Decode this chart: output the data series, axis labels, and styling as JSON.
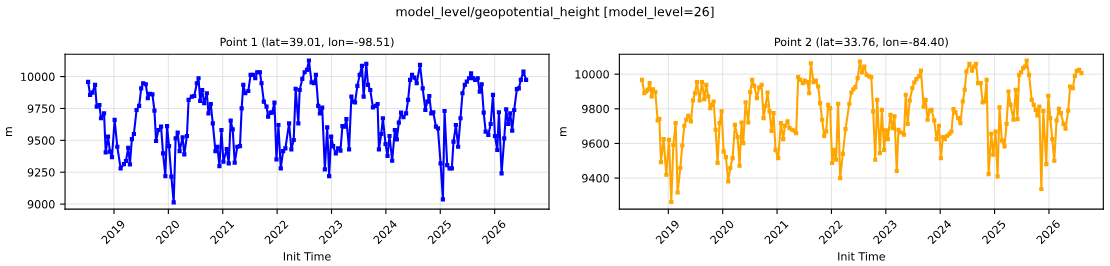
{
  "chart_data": [
    {
      "type": "line",
      "title": "Point 1 (lat=39.01, lon=-98.51)",
      "annotations": [
        "model_level/geopotential_height [model_level=26]"
      ],
      "xlabel": "Init Time",
      "ylabel": "m",
      "marker": "square",
      "grid": true,
      "xlim": [
        2018.1,
        2027.0
      ],
      "xticks": [
        2019,
        2020,
        2021,
        2022,
        2023,
        2024,
        2025,
        2026
      ],
      "ylim": [
        8961,
        10175
      ],
      "yticks": [
        9000,
        9250,
        9500,
        9750,
        10000
      ],
      "series": [
        {
          "color": "#0000ff",
          "x": [
            2018.524,
            2018.561,
            2018.604,
            2018.652,
            2018.683,
            2018.732,
            2018.762,
            2018.817,
            2018.848,
            2018.89,
            2018.927,
            2018.963,
            2019.012,
            2019.061,
            2019.122,
            2019.183,
            2019.22,
            2019.262,
            2019.293,
            2019.329,
            2019.366,
            2019.415,
            2019.463,
            2019.5,
            2019.537,
            2019.585,
            2019.622,
            2019.659,
            2019.707,
            2019.744,
            2019.774,
            2019.817,
            2019.866,
            2019.902,
            2019.945,
            2019.976,
            2020.012,
            2020.055,
            2020.098,
            2020.134,
            2020.171,
            2020.207,
            2020.262,
            2020.293,
            2020.341,
            2020.372,
            2020.433,
            2020.476,
            2020.524,
            2020.555,
            2020.585,
            2020.622,
            2020.659,
            2020.707,
            2020.738,
            2020.78,
            2020.817,
            2020.866,
            2020.902,
            2020.939,
            2020.976,
            2021.012,
            2021.073,
            2021.11,
            2021.146,
            2021.183,
            2021.22,
            2021.268,
            2021.317,
            2021.348,
            2021.378,
            2021.415,
            2021.47,
            2021.512,
            2021.561,
            2021.598,
            2021.634,
            2021.683,
            2021.713,
            2021.756,
            2021.805,
            2021.835,
            2021.878,
            2021.909,
            2021.951,
            2021.988,
            2022.024,
            2022.067,
            2022.11,
            2022.152,
            2022.22,
            2022.262,
            2022.305,
            2022.341,
            2022.39,
            2022.415,
            2022.463,
            2022.506,
            2022.549,
            2022.585,
            2022.634,
            2022.677,
            2022.713,
            2022.756,
            2022.787,
            2022.829,
            2022.878,
            2022.921,
            2022.957,
            2022.994,
            2023.03,
            2023.079,
            2023.122,
            2023.165,
            2023.201,
            2023.244,
            2023.274,
            2023.323,
            2023.366,
            2023.396,
            2023.433,
            2023.476,
            2023.518,
            2023.561,
            2023.591,
            2023.64,
            2023.671,
            2023.713,
            2023.762,
            2023.811,
            2023.848,
            2023.872,
            2023.915,
            2023.945,
            2023.994,
            2024.03,
            2024.067,
            2024.116,
            2024.165,
            2024.201,
            2024.238,
            2024.28,
            2024.323,
            2024.372,
            2024.409,
            2024.445,
            2024.482,
            2024.524,
            2024.567,
            2024.628,
            2024.677,
            2024.726,
            2024.762,
            2024.799,
            2024.835,
            2024.872,
            2024.921,
            2024.957,
            2025.006,
            2025.049,
            2025.079,
            2025.128,
            2025.171,
            2025.213,
            2025.244,
            2025.287,
            2025.329,
            2025.372,
            2025.409,
            2025.451,
            2025.488,
            2025.53,
            2025.567,
            2025.604,
            2025.64,
            2025.689,
            2025.726,
            2025.762,
            2025.799,
            2025.835,
            2025.884,
            2025.927,
            2025.97,
            2026.006,
            2026.049,
            2026.079,
            2026.128,
            2026.177,
            2026.213,
            2026.25,
            2026.287,
            2026.323,
            2026.36,
            2026.409,
            2026.445,
            2026.482,
            2026.53,
            2026.579
          ],
          "values": [
            9958,
            9856,
            9874,
            9935,
            9764,
            9777,
            9673,
            9712,
            9406,
            9529,
            9411,
            9369,
            9660,
            9450,
            9280,
            9314,
            9338,
            9442,
            9311,
            9510,
            9550,
            9738,
            9770,
            9908,
            9948,
            9940,
            9830,
            9864,
            9861,
            9733,
            9495,
            9581,
            9607,
            9398,
            9220,
            9612,
            9455,
            9215,
            9013,
            9516,
            9560,
            9416,
            9524,
            9390,
            9534,
            9817,
            9843,
            9848,
            9948,
            9987,
            9809,
            9895,
            9791,
            9869,
            9712,
            9785,
            9633,
            9416,
            9450,
            9298,
            9581,
            9332,
            9432,
            9319,
            9654,
            9586,
            9325,
            9450,
            9455,
            9751,
            9935,
            9869,
            9887,
            10013,
            10013,
            9987,
            10034,
            10034,
            9948,
            9804,
            9764,
            9686,
            9717,
            9717,
            9796,
            9351,
            9620,
            9280,
            9416,
            9437,
            9633,
            9429,
            9503,
            9903,
            9633,
            9895,
            9982,
            10034,
            10052,
            10126,
            9955,
            9948,
            10013,
            9770,
            9712,
            9757,
            9272,
            9602,
            9220,
            9529,
            9455,
            9398,
            9437,
            9419,
            9612,
            9607,
            9667,
            9429,
            9843,
            9804,
            9798,
            9927,
            10013,
            10084,
            9843,
            10099,
            9935,
            9895,
            9759,
            9770,
            9785,
            9429,
            9550,
            9673,
            9471,
            9377,
            9534,
            9340,
            9581,
            9508,
            9639,
            9717,
            9681,
            9712,
            9817,
            9974,
            10013,
            9992,
            9948,
            10092,
            9908,
            9738,
            9804,
            9848,
            9712,
            9720,
            9607,
            9594,
            9319,
            9037,
            9730,
            9306,
            9280,
            9280,
            9490,
            9620,
            9450,
            9673,
            9869,
            9935,
            9961,
            9987,
            10026,
            9987,
            9974,
            9987,
            9882,
            9940,
            9717,
            9568,
            9542,
            9628,
            9856,
            9534,
            9424,
            9720,
            9241,
            9516,
            9743,
            9628,
            9712,
            9576,
            9738,
            9901,
            9908,
            9974,
            10039,
            9974
          ]
        }
      ]
    },
    {
      "type": "line",
      "title": "Point 2 (lat=33.76, lon=-84.40)",
      "xlabel": "Init Time",
      "ylabel": "m",
      "marker": "square",
      "grid": true,
      "xlim": [
        2018.1,
        2027.0
      ],
      "xticks": [
        2019,
        2020,
        2021,
        2022,
        2023,
        2024,
        2025,
        2026
      ],
      "ylim": [
        9221,
        10115
      ],
      "yticks": [
        9400,
        9600,
        9800,
        10000
      ],
      "series": [
        {
          "color": "#ffa500",
          "x": [
            2018.516,
            2018.559,
            2018.596,
            2018.62,
            2018.657,
            2018.694,
            2018.718,
            2018.761,
            2018.804,
            2018.835,
            2018.865,
            2018.914,
            2018.963,
            2019.012,
            2019.055,
            2019.092,
            2019.135,
            2019.171,
            2019.22,
            2019.257,
            2019.294,
            2019.331,
            2019.367,
            2019.416,
            2019.453,
            2019.49,
            2019.527,
            2019.576,
            2019.619,
            2019.661,
            2019.698,
            2019.735,
            2019.772,
            2019.808,
            2019.833,
            2019.87,
            2019.906,
            2019.943,
            2019.98,
            2020.017,
            2020.059,
            2020.102,
            2020.139,
            2020.182,
            2020.225,
            2020.274,
            2020.31,
            2020.347,
            2020.378,
            2020.421,
            2020.47,
            2020.506,
            2020.543,
            2020.58,
            2020.629,
            2020.672,
            2020.715,
            2020.751,
            2020.788,
            2020.825,
            2020.862,
            2020.898,
            2020.935,
            2020.972,
            2021.021,
            2021.07,
            2021.113,
            2021.143,
            2021.192,
            2021.229,
            2021.278,
            2021.327,
            2021.351,
            2021.388,
            2021.425,
            2021.474,
            2021.511,
            2021.56,
            2021.59,
            2021.621,
            2021.67,
            2021.713,
            2021.756,
            2021.792,
            2021.829,
            2021.866,
            2021.903,
            2021.939,
            2021.976,
            2022.013,
            2022.05,
            2022.086,
            2022.123,
            2022.16,
            2022.209,
            2022.258,
            2022.329,
            2022.366,
            2022.402,
            2022.439,
            2022.482,
            2022.524,
            2022.561,
            2022.604,
            2022.646,
            2022.695,
            2022.732,
            2022.768,
            2022.805,
            2022.841,
            2022.89,
            2022.927,
            2022.97,
            2023.0,
            2023.037,
            2023.085,
            2023.122,
            2023.159,
            2023.201,
            2023.232,
            2023.28,
            2023.335,
            2023.366,
            2023.402,
            2023.439,
            2023.488,
            2023.524,
            2023.561,
            2023.61,
            2023.646,
            2023.695,
            2023.732,
            2023.768,
            2023.811,
            2023.841,
            2023.89,
            2023.933,
            2023.976,
            2024.012,
            2024.049,
            2024.085,
            2024.128,
            2024.171,
            2024.207,
            2024.244,
            2024.28,
            2024.329,
            2024.372,
            2024.415,
            2024.451,
            2024.482,
            2024.537,
            2024.585,
            2024.622,
            2024.659,
            2024.695,
            2024.744,
            2024.78,
            2024.817,
            2024.854,
            2024.89,
            2024.939,
            2024.976,
            2025.018,
            2025.055,
            2025.091,
            2025.134,
            2025.183,
            2025.22,
            2025.256,
            2025.293,
            2025.348,
            2025.39,
            2025.421,
            2025.451,
            2025.488,
            2025.524,
            2025.561,
            2025.591,
            2025.634,
            2025.683,
            2025.72,
            2025.756,
            2025.787,
            2025.823,
            2025.86,
            2025.896,
            2025.951,
            2025.988,
            2026.024,
            2026.061,
            2026.098,
            2026.14,
            2026.183,
            2026.22,
            2026.268,
            2026.305,
            2026.354,
            2026.39,
            2026.439,
            2026.476,
            2026.512,
            2026.555,
            2026.598
          ],
          "values": [
            9967,
            9890,
            9900,
            9910,
            9948,
            9871,
            9913,
            9896,
            9733,
            9742,
            9492,
            9625,
            9419,
            9621,
            9262,
            9592,
            9717,
            9317,
            9458,
            9588,
            9702,
            9737,
            9760,
            9727,
            9848,
            9890,
            9954,
            9848,
            9954,
            9856,
            9938,
            9871,
            9804,
            9823,
            9842,
            9679,
            9488,
            9717,
            9785,
            9554,
            9521,
            9381,
            9458,
            9515,
            9708,
            9637,
            9471,
            9721,
            9602,
            9837,
            9721,
            9896,
            9967,
            9933,
            9862,
            9923,
            9938,
            9746,
            9817,
            9894,
            9785,
            9673,
            9775,
            9563,
            9515,
            9717,
            9625,
            9702,
            9727,
            9688,
            9679,
            9673,
            9660,
            9983,
            9967,
            9948,
            9963,
            9954,
            9890,
            10063,
            9954,
            9963,
            9929,
            9833,
            9737,
            9644,
            9669,
            9823,
            9804,
            9487,
            9563,
            9506,
            9829,
            9400,
            9540,
            9683,
            9829,
            9894,
            9913,
            9925,
            9977,
            10073,
            10010,
            10044,
            9996,
            9987,
            9983,
            9785,
            9506,
            9852,
            9544,
            9794,
            9563,
            9675,
            9625,
            9765,
            9688,
            9756,
            9442,
            9679,
            9663,
            9650,
            9881,
            9713,
            9848,
            9919,
            9952,
            9971,
            9987,
            10021,
            9813,
            9852,
            9737,
            9790,
            9794,
            9733,
            9625,
            9702,
            9515,
            9637,
            9625,
            9644,
            9656,
            9669,
            9798,
            9779,
            9746,
            9717,
            9842,
            9910,
            10015,
            10060,
            10021,
            10044,
            10060,
            9948,
            9948,
            9837,
            9842,
            9967,
            9423,
            9656,
            9535,
            9669,
            9410,
            9808,
            9617,
            9583,
            9713,
            9900,
            9823,
            9737,
            9910,
            9740,
            9996,
            10010,
            10035,
            10044,
            10079,
            9996,
            9852,
            9823,
            9794,
            9762,
            9813,
            9337,
            9788,
            9481,
            9875,
            9746,
            9625,
            9500,
            9733,
            9800,
            9775,
            9713,
            9685,
            9790,
            9929,
            9919,
            9990,
            10019,
            10025,
            10006
          ]
        }
      ]
    }
  ]
}
